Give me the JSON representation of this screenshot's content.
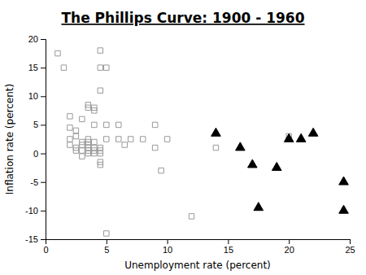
{
  "chart_data": {
    "type": "scatter",
    "title": "The Phillips Curve: 1900 - 1960",
    "xlabel": "Unemployment rate (percent)",
    "ylabel": "Inflation rate (percent)",
    "xlim": [
      0,
      25
    ],
    "ylim": [
      -15,
      20
    ],
    "xticks": [
      0,
      5,
      10,
      15,
      20,
      25
    ],
    "yticks": [
      -15,
      -10,
      -5,
      0,
      5,
      10,
      15,
      20
    ],
    "grid": false,
    "series": [
      {
        "color": "#999999",
        "marker": "square-open",
        "x": [
          1.0,
          1.5,
          2.0,
          2.0,
          2.0,
          2.0,
          2.5,
          2.5,
          2.5,
          2.5,
          3.0,
          3.0,
          3.0,
          3.0,
          3.0,
          3.5,
          3.5,
          3.5,
          3.5,
          3.5,
          3.5,
          3.5,
          3.5,
          4.0,
          4.0,
          4.0,
          4.0,
          4.0,
          4.0,
          4.0,
          4.5,
          4.5,
          4.5,
          4.5,
          4.5,
          4.5,
          4.5,
          4.5,
          5.0,
          5.0,
          5.0,
          5.0,
          6.0,
          6.0,
          6.5,
          7.0,
          8.0,
          9.0,
          9.0,
          9.5,
          10.0,
          12.0,
          14.0,
          20.0
        ],
        "values": [
          17.5,
          15.0,
          6.5,
          4.5,
          2.5,
          1.5,
          4.0,
          3.0,
          1.0,
          0.5,
          6.0,
          2.0,
          1.5,
          0.5,
          -0.5,
          8.5,
          8.0,
          2.5,
          2.0,
          1.5,
          1.0,
          0.5,
          0.0,
          8.0,
          7.5,
          5.0,
          2.0,
          1.0,
          0.5,
          0.0,
          11.0,
          15.0,
          18.0,
          1.0,
          0.5,
          0.0,
          -1.5,
          -2.0,
          15.0,
          5.0,
          2.5,
          -14.0,
          5.0,
          2.5,
          1.5,
          2.5,
          2.5,
          5.0,
          1.0,
          -3.0,
          2.5,
          -11.0,
          1.0,
          3.0
        ]
      },
      {
        "color": "#000000",
        "marker": "triangle",
        "x": [
          14.0,
          16.0,
          17.0,
          17.5,
          19.0,
          20.0,
          21.0,
          22.0,
          24.5,
          24.5
        ],
        "values": [
          3.5,
          1.0,
          -2.0,
          -9.5,
          -2.5,
          2.5,
          2.5,
          3.5,
          -5.0,
          -10.0
        ]
      }
    ]
  }
}
